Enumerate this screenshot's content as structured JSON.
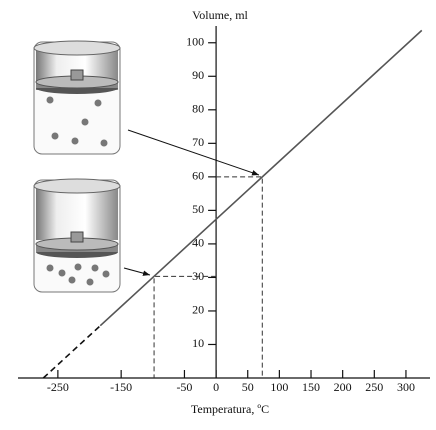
{
  "chart_data": {
    "type": "line",
    "y_label": "Volume, ml",
    "x_label": "Temperatura, ºC",
    "xlim": [
      -313,
      338
    ],
    "ylim": [
      0,
      105
    ],
    "xticks": [
      -250,
      -150,
      -50,
      0,
      50,
      100,
      150,
      200,
      250,
      300
    ],
    "yticks": [
      10,
      20,
      30,
      40,
      50,
      60,
      70,
      80,
      90,
      100
    ],
    "series": [
      {
        "color": "#111111",
        "dashed": true,
        "x": [
          -273,
          -183
        ],
        "values": [
          0,
          15.6
        ]
      },
      {
        "color": "#555555",
        "dashed": false,
        "x": [
          -183,
          325
        ],
        "values": [
          15.6,
          103.7
        ]
      }
    ],
    "points": [
      {
        "x": 73,
        "y": 60
      },
      {
        "x": -98,
        "y": 30.3
      }
    ]
  }
}
